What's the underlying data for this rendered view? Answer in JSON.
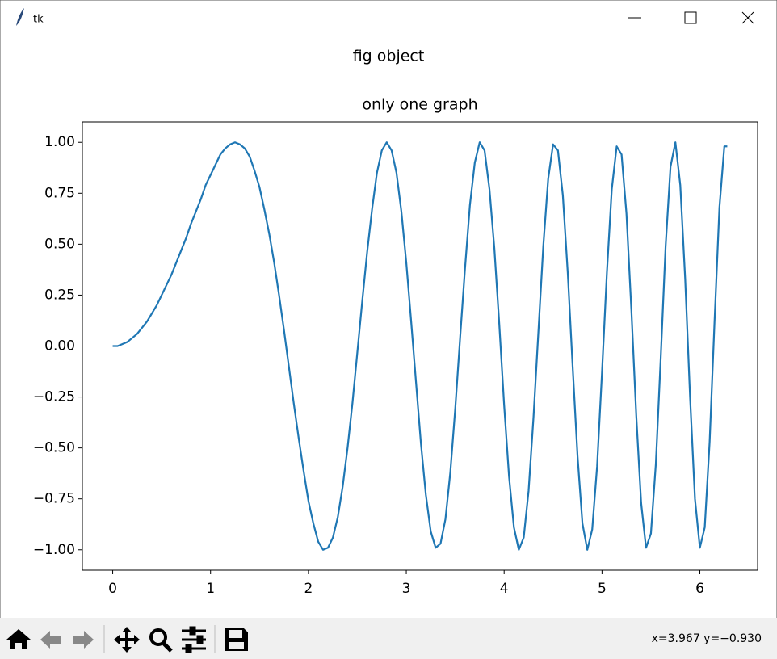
{
  "window": {
    "title": "tk"
  },
  "figure_title": "fig object",
  "status": "x=3.967 y=−0.930",
  "chart_data": {
    "type": "line",
    "title": "only one graph",
    "color": "#1f77b4",
    "x": [
      0,
      0.05,
      0.1,
      0.15,
      0.2,
      0.25,
      0.3,
      0.35,
      0.4,
      0.45,
      0.5,
      0.55,
      0.6,
      0.65,
      0.7,
      0.75,
      0.8,
      0.85,
      0.9,
      0.95,
      1.0,
      1.05,
      1.1,
      1.15,
      1.2,
      1.25,
      1.3,
      1.35,
      1.4,
      1.45,
      1.5,
      1.55,
      1.6,
      1.65,
      1.7,
      1.75,
      1.8,
      1.85,
      1.9,
      1.95,
      2.0,
      2.05,
      2.1,
      2.15,
      2.2,
      2.25,
      2.3,
      2.35,
      2.4,
      2.45,
      2.5,
      2.55,
      2.6,
      2.65,
      2.7,
      2.75,
      2.8,
      2.85,
      2.9,
      2.95,
      3.0,
      3.05,
      3.1,
      3.15,
      3.2,
      3.25,
      3.3,
      3.35,
      3.4,
      3.45,
      3.5,
      3.55,
      3.6,
      3.65,
      3.7,
      3.75,
      3.8,
      3.85,
      3.9,
      3.95,
      4.0,
      4.05,
      4.1,
      4.15,
      4.2,
      4.25,
      4.3,
      4.35,
      4.4,
      4.45,
      4.5,
      4.55,
      4.6,
      4.65,
      4.7,
      4.75,
      4.8,
      4.85,
      4.9,
      4.95,
      5.0,
      5.05,
      5.1,
      5.15,
      5.2,
      5.25,
      5.3,
      5.35,
      5.4,
      5.45,
      5.5,
      5.55,
      5.6,
      5.65,
      5.7,
      5.75,
      5.8,
      5.85,
      5.9,
      5.95,
      6.0,
      6.05,
      6.1,
      6.15,
      6.2,
      6.25,
      6.28
    ],
    "values": [
      0,
      0,
      0.01,
      0.02,
      0.04,
      0.06,
      0.09,
      0.12,
      0.16,
      0.2,
      0.25,
      0.3,
      0.35,
      0.41,
      0.47,
      0.53,
      0.6,
      0.66,
      0.72,
      0.79,
      0.84,
      0.89,
      0.94,
      0.97,
      0.99,
      1.0,
      0.99,
      0.97,
      0.93,
      0.86,
      0.78,
      0.67,
      0.55,
      0.41,
      0.25,
      0.08,
      -0.1,
      -0.28,
      -0.45,
      -0.61,
      -0.76,
      -0.87,
      -0.96,
      -1.0,
      -0.99,
      -0.94,
      -0.84,
      -0.69,
      -0.5,
      -0.28,
      -0.03,
      0.22,
      0.46,
      0.67,
      0.85,
      0.96,
      1.0,
      0.96,
      0.85,
      0.66,
      0.41,
      0.12,
      -0.18,
      -0.48,
      -0.73,
      -0.91,
      -0.99,
      -0.97,
      -0.85,
      -0.62,
      -0.31,
      0.04,
      0.38,
      0.69,
      0.9,
      1.0,
      0.96,
      0.77,
      0.48,
      0.11,
      -0.29,
      -0.64,
      -0.89,
      -1.0,
      -0.94,
      -0.71,
      -0.35,
      0.07,
      0.49,
      0.82,
      0.99,
      0.96,
      0.74,
      0.36,
      -0.1,
      -0.54,
      -0.87,
      -1.0,
      -0.9,
      -0.59,
      -0.13,
      0.36,
      0.77,
      0.98,
      0.94,
      0.65,
      0.18,
      -0.34,
      -0.77,
      -0.99,
      -0.92,
      -0.58,
      -0.06,
      0.49,
      0.88,
      1.0,
      0.79,
      0.33,
      -0.25,
      -0.75,
      -0.99,
      -0.89,
      -0.47,
      0.12,
      0.68,
      0.98,
      0.98
    ],
    "xlim": [
      -0.31,
      6.59
    ],
    "ylim": [
      -1.1,
      1.1
    ],
    "xticks": [
      0,
      1,
      2,
      3,
      4,
      5,
      6
    ],
    "yticks": [
      {
        "value": -1,
        "label": "−1.00"
      },
      {
        "value": -0.75,
        "label": "−0.75"
      },
      {
        "value": -0.5,
        "label": "−0.50"
      },
      {
        "value": -0.25,
        "label": "−0.25"
      },
      {
        "value": 0,
        "label": "0.00"
      },
      {
        "value": 0.25,
        "label": "0.25"
      },
      {
        "value": 0.5,
        "label": "0.50"
      },
      {
        "value": 0.75,
        "label": "0.75"
      },
      {
        "value": 1,
        "label": "1.00"
      }
    ]
  }
}
